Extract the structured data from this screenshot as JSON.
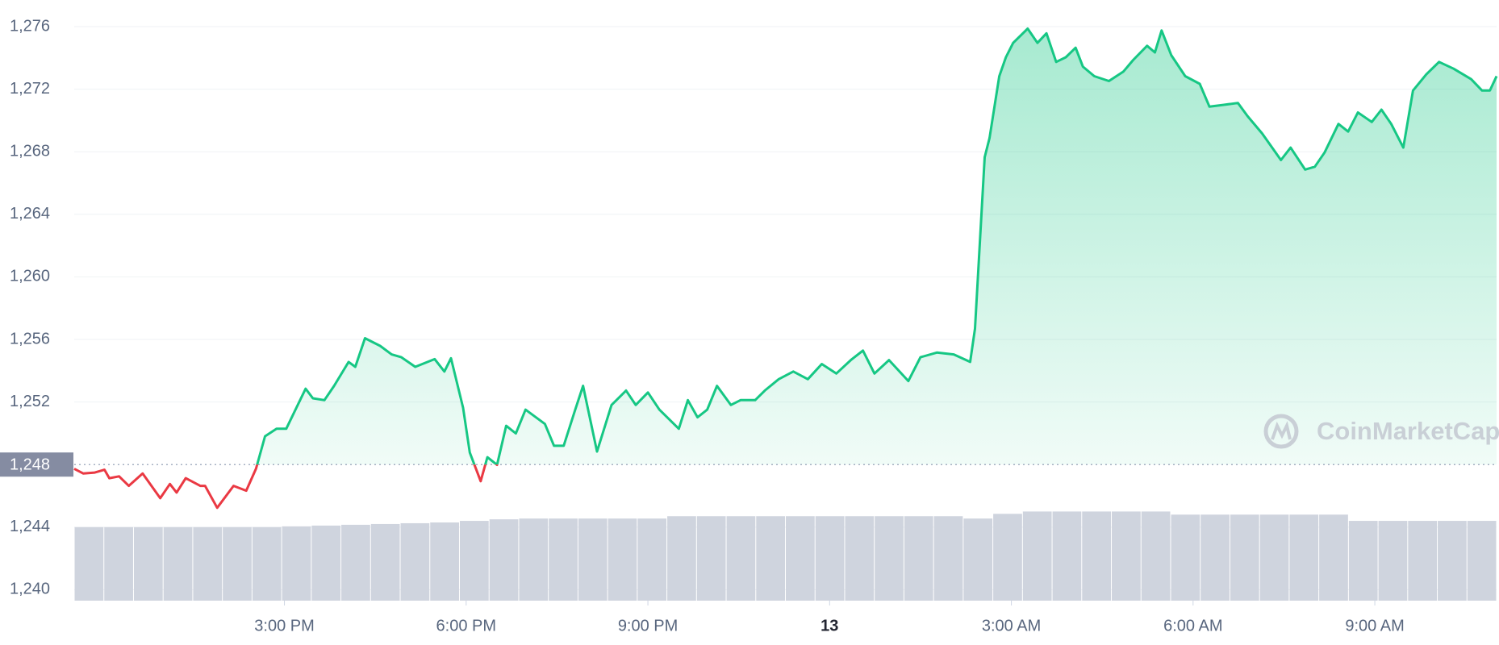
{
  "chart_data": {
    "type": "line",
    "x": [
      -0.47,
      -0.32,
      -0.13,
      0.03,
      0.11,
      0.27,
      0.43,
      0.66,
      0.95,
      1.11,
      1.22,
      1.37,
      1.61,
      1.69,
      1.89,
      2.16,
      2.37,
      2.53,
      2.68,
      2.87,
      3.03,
      3.35,
      3.47,
      3.66,
      3.82,
      4.06,
      4.17,
      4.33,
      4.58,
      4.77,
      4.93,
      5.16,
      5.48,
      5.64,
      5.75,
      5.95,
      6.06,
      6.24,
      6.35,
      6.51,
      6.66,
      6.82,
      6.98,
      7.3,
      7.45,
      7.61,
      7.8,
      7.93,
      8.16,
      8.4,
      8.64,
      8.8,
      9.0,
      9.19,
      9.51,
      9.66,
      9.82,
      9.98,
      10.14,
      10.37,
      10.53,
      10.77,
      10.93,
      11.16,
      11.4,
      11.64,
      11.87,
      12.11,
      12.35,
      12.55,
      12.74,
      12.98,
      13.3,
      13.5,
      13.77,
      14.05,
      14.32,
      14.4,
      14.56,
      14.64,
      14.8,
      14.91,
      15.03,
      15.27,
      15.43,
      15.58,
      15.74,
      15.9,
      16.06,
      16.18,
      16.37,
      16.61,
      16.85,
      17.01,
      17.24,
      17.37,
      17.48,
      17.64,
      17.87,
      18.11,
      18.27,
      18.51,
      18.74,
      18.9,
      19.14,
      19.45,
      19.61,
      19.85,
      20.01,
      20.17,
      20.4,
      20.56,
      20.72,
      20.95,
      21.11,
      21.27,
      21.47,
      21.63,
      21.85,
      22.06,
      22.3,
      22.59,
      22.77,
      22.9,
      23.01
    ],
    "series": [
      {
        "values": [
          1247.73,
          1247.43,
          1247.49,
          1247.67,
          1247.13,
          1247.25,
          1246.64,
          1247.43,
          1245.85,
          1246.76,
          1246.21,
          1247.13,
          1246.64,
          1246.64,
          1245.24,
          1246.64,
          1246.33,
          1247.73,
          1249.81,
          1250.29,
          1250.29,
          1252.85,
          1252.24,
          1252.12,
          1253.03,
          1254.56,
          1254.25,
          1256.08,
          1255.59,
          1255.04,
          1254.86,
          1254.25,
          1254.74,
          1253.95,
          1254.8,
          1251.63,
          1248.77,
          1246.94,
          1248.47,
          1247.98,
          1250.48,
          1249.99,
          1251.51,
          1250.6,
          1249.2,
          1249.2,
          1251.51,
          1253.03,
          1248.83,
          1251.81,
          1252.73,
          1251.81,
          1252.61,
          1251.51,
          1250.29,
          1252.12,
          1251.02,
          1251.51,
          1253.03,
          1251.81,
          1252.12,
          1252.12,
          1252.73,
          1253.46,
          1253.95,
          1253.46,
          1254.43,
          1253.82,
          1254.68,
          1255.29,
          1253.82,
          1254.68,
          1253.34,
          1254.86,
          1255.16,
          1255.04,
          1254.56,
          1256.69,
          1267.65,
          1268.87,
          1272.83,
          1274.04,
          1274.96,
          1275.87,
          1274.96,
          1275.57,
          1273.74,
          1274.04,
          1274.65,
          1273.44,
          1272.83,
          1272.52,
          1273.13,
          1273.86,
          1274.77,
          1274.35,
          1275.75,
          1274.17,
          1272.83,
          1272.34,
          1270.88,
          1271.0,
          1271.12,
          1270.27,
          1269.17,
          1267.47,
          1268.26,
          1266.86,
          1267.04,
          1267.95,
          1269.78,
          1269.29,
          1270.51,
          1269.9,
          1270.69,
          1269.78,
          1268.26,
          1271.91,
          1272.95,
          1273.74,
          1273.31,
          1272.64,
          1271.91,
          1271.91,
          1272.83
        ]
      }
    ],
    "colors": {
      "up": "#16c784",
      "down": "#ea3943"
    },
    "reference": {
      "value": 1248,
      "label": "1,248"
    },
    "volume": {
      "color": "#cfd4de",
      "values": [
        1244.0,
        1244.0,
        1244.0,
        1244.0,
        1244.0,
        1244.0,
        1244.0,
        1244.05,
        1244.1,
        1244.15,
        1244.2,
        1244.25,
        1244.3,
        1244.4,
        1244.5,
        1244.55,
        1244.55,
        1244.55,
        1244.55,
        1244.55,
        1244.7,
        1244.7,
        1244.7,
        1244.7,
        1244.7,
        1244.7,
        1244.7,
        1244.7,
        1244.7,
        1244.7,
        1244.55,
        1244.85,
        1245.0,
        1245.0,
        1245.0,
        1245.0,
        1245.0,
        1244.8,
        1244.8,
        1244.8,
        1244.8,
        1244.8,
        1244.8,
        1244.4,
        1244.4,
        1244.4,
        1244.4,
        1244.4
      ]
    },
    "xlim": [
      -0.47,
      23.01
    ],
    "xticks": [
      {
        "value": 3,
        "label": "3:00 PM"
      },
      {
        "value": 6,
        "label": "6:00 PM"
      },
      {
        "value": 9,
        "label": "9:00 PM"
      },
      {
        "value": 12,
        "label": "13"
      },
      {
        "value": 15,
        "label": "3:00 AM"
      },
      {
        "value": 18,
        "label": "6:00 AM"
      },
      {
        "value": 21,
        "label": "9:00 AM"
      }
    ],
    "ylim": [
      1239.3,
      1277.7
    ],
    "yticks": [
      {
        "value": 1240,
        "label": "1,240"
      },
      {
        "value": 1244,
        "label": "1,244"
      },
      {
        "value": 1252,
        "label": "1,252"
      },
      {
        "value": 1256,
        "label": "1,256"
      },
      {
        "value": 1260,
        "label": "1,260"
      },
      {
        "value": 1264,
        "label": "1,264"
      },
      {
        "value": 1268,
        "label": "1,268"
      },
      {
        "value": 1272,
        "label": "1,272"
      },
      {
        "value": 1276,
        "label": "1,276"
      }
    ],
    "grid": true,
    "watermark": "CoinMarketCap"
  }
}
